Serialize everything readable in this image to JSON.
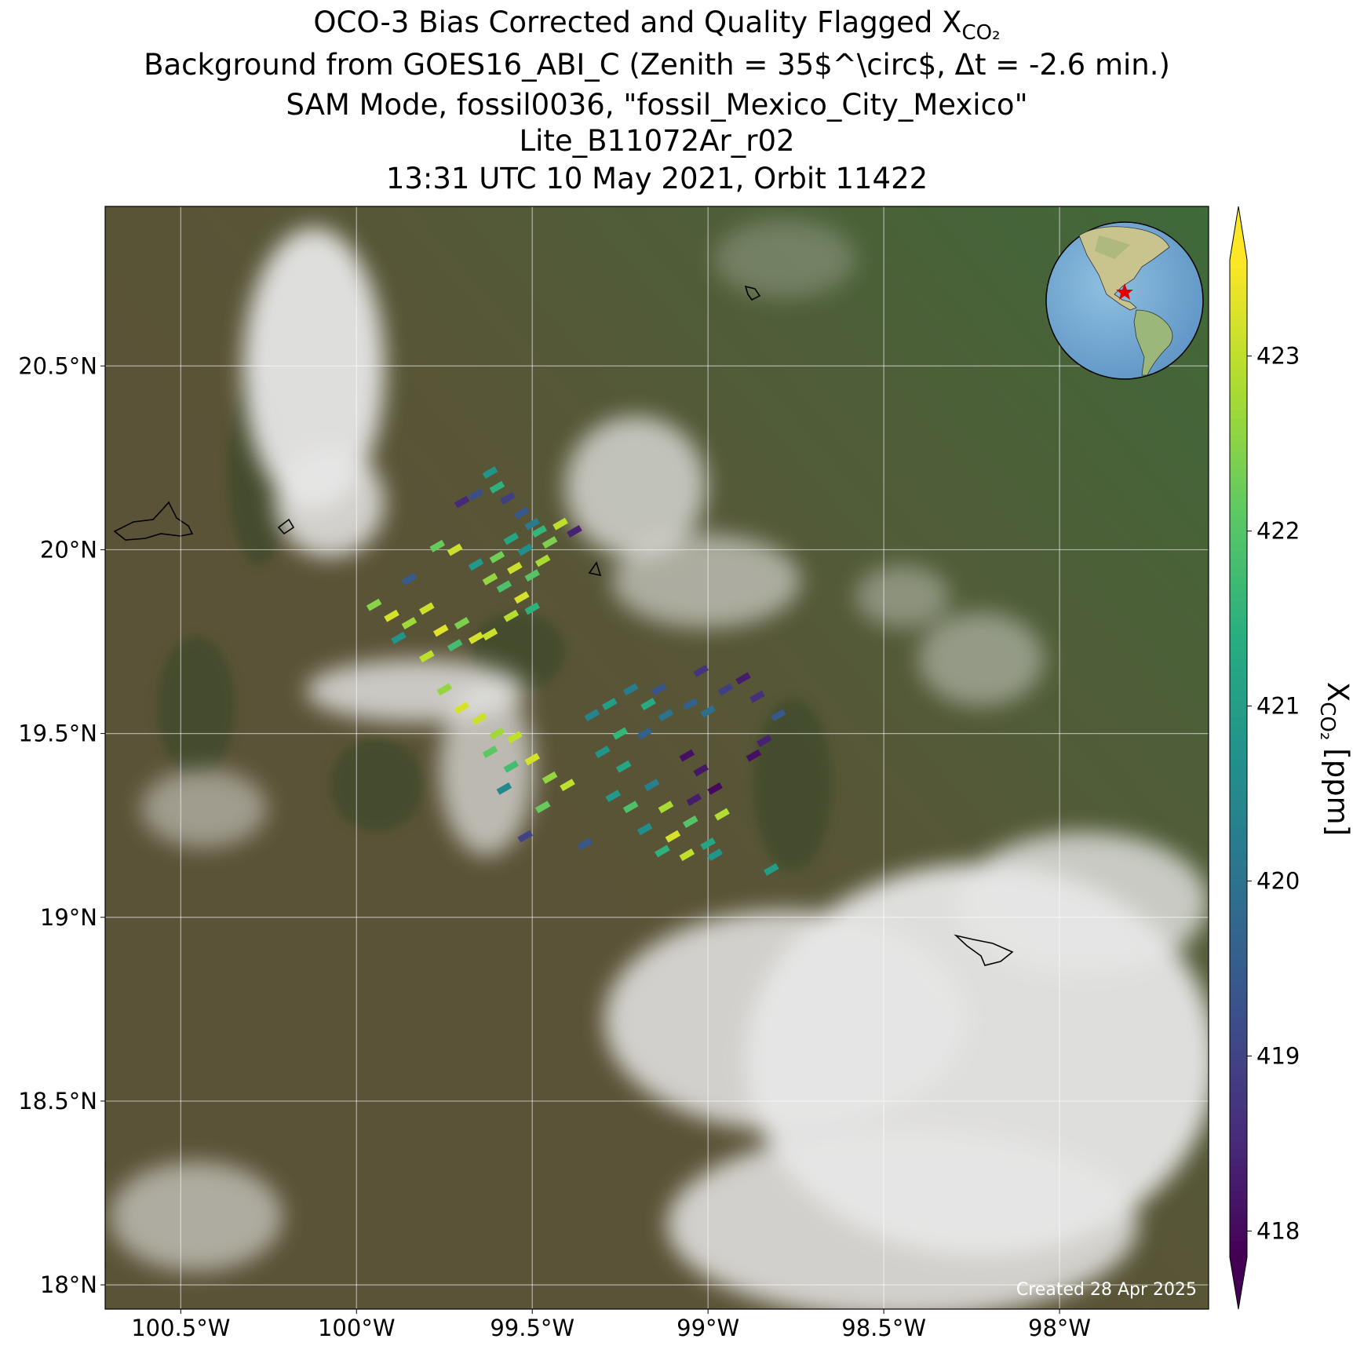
{
  "chart_data": {
    "type": "map-scatter",
    "title_lines": [
      "OCO-3 Bias Corrected and Quality Flagged X",
      "Background from GOES16_ABI_C (Zenith = 35$^\\circ$, Δt = -2.6 min.)",
      "SAM Mode, fossil0036, \"fossil_Mexico_City_Mexico\"",
      "Lite_B11072Ar_r02",
      "13:31 UTC 10 May 2021, Orbit 11422"
    ],
    "title_subscript": "CO₂",
    "colorbar_label": {
      "symbol": "X",
      "subscript": "CO₂",
      "unit": "[ppm]"
    },
    "credit": "Created 28 Apr 2025",
    "colormap": "viridis",
    "clim": [
      417.85,
      423.55
    ],
    "cticks": [
      418,
      419,
      420,
      421,
      422,
      423
    ],
    "xlim": [
      -100.715,
      -97.576
    ],
    "ylim": [
      17.934,
      20.934
    ],
    "xticks": [
      {
        "value": -100.5,
        "label": "100.5°W"
      },
      {
        "value": -100,
        "label": "100°W"
      },
      {
        "value": -99.5,
        "label": "99.5°W"
      },
      {
        "value": -99,
        "label": "99°W"
      },
      {
        "value": -98.5,
        "label": "98.5°W"
      },
      {
        "value": -98,
        "label": "98°W"
      }
    ],
    "yticks": [
      {
        "value": 18,
        "label": "18°N"
      },
      {
        "value": 18.5,
        "label": "18.5°N"
      },
      {
        "value": 19,
        "label": "19°N"
      },
      {
        "value": 19.5,
        "label": "19.5°N"
      },
      {
        "value": 20,
        "label": "20°N"
      },
      {
        "value": 20.5,
        "label": "20.5°N"
      }
    ],
    "grid": true,
    "x": [
      -99.62,
      -99.6,
      -99.66,
      -99.57,
      -99.7,
      -99.53,
      -99.5,
      -99.48,
      -99.56,
      -99.52,
      -99.45,
      -99.42,
      -99.38,
      -99.6,
      -99.55,
      -99.5,
      -99.47,
      -99.58,
      -99.53,
      -99.62,
      -99.56,
      -99.5,
      -99.66,
      -99.72,
      -99.77,
      -99.85,
      -99.95,
      -99.9,
      -99.85,
      -99.8,
      -99.76,
      -99.7,
      -99.66,
      -99.62,
      -99.72,
      -99.88,
      -99.8,
      -99.75,
      -99.7,
      -99.65,
      -99.6,
      -99.55,
      -99.62,
      -99.56,
      -99.5,
      -99.45,
      -99.4,
      -99.58,
      -99.47,
      -99.33,
      -99.28,
      -99.22,
      -99.17,
      -99.12,
      -99.25,
      -99.18,
      -99.3,
      -99.24,
      -99.14,
      -99.05,
      -99.0,
      -98.95,
      -98.9,
      -98.86,
      -98.8,
      -99.02,
      -99.06,
      -99.02,
      -98.98,
      -99.04,
      -98.84,
      -98.87,
      -99.27,
      -99.22,
      -99.16,
      -99.12,
      -99.18,
      -99.1,
      -99.05,
      -99.13,
      -99.06,
      -99.0,
      -98.96,
      -98.98,
      -98.82,
      -99.35,
      -99.52
    ],
    "y": [
      20.21,
      20.17,
      20.15,
      20.14,
      20.13,
      20.1,
      20.07,
      20.05,
      20.03,
      20.0,
      20.02,
      20.07,
      20.05,
      19.98,
      19.95,
      19.93,
      19.97,
      19.9,
      19.87,
      19.92,
      19.82,
      19.84,
      19.96,
      20.0,
      20.01,
      19.92,
      19.85,
      19.82,
      19.8,
      19.84,
      19.78,
      19.8,
      19.76,
      19.77,
      19.74,
      19.76,
      19.71,
      19.62,
      19.57,
      19.54,
      19.5,
      19.49,
      19.45,
      19.41,
      19.43,
      19.38,
      19.36,
      19.35,
      19.3,
      19.55,
      19.58,
      19.62,
      19.58,
      19.55,
      19.5,
      19.5,
      19.45,
      19.41,
      19.62,
      19.58,
      19.56,
      19.62,
      19.65,
      19.6,
      19.55,
      19.67,
      19.44,
      19.4,
      19.35,
      19.32,
      19.48,
      19.44,
      19.33,
      19.3,
      19.36,
      19.3,
      19.24,
      19.22,
      19.26,
      19.18,
      19.17,
      19.2,
      19.28,
      19.17,
      19.13,
      19.2,
      19.22
    ],
    "values": [
      420.8,
      421.5,
      419.2,
      418.9,
      418.5,
      419.4,
      420.2,
      421.6,
      421.2,
      420.6,
      422.4,
      423.0,
      418.4,
      422.3,
      423.1,
      422.0,
      422.8,
      421.9,
      423.2,
      422.6,
      422.9,
      421.5,
      420.9,
      423.1,
      422.2,
      419.5,
      422.5,
      423.2,
      422.7,
      423.1,
      423.3,
      422.4,
      423.2,
      423.1,
      421.8,
      420.8,
      423.0,
      422.6,
      423.2,
      423.1,
      422.7,
      423.0,
      422.1,
      421.8,
      423.2,
      422.6,
      423.0,
      420.5,
      422.2,
      420.4,
      421.0,
      420.2,
      421.3,
      420.0,
      421.6,
      419.6,
      420.8,
      421.2,
      419.3,
      419.6,
      419.9,
      418.9,
      418.3,
      418.6,
      419.4,
      418.7,
      418.1,
      418.2,
      418.0,
      418.3,
      418.4,
      418.1,
      420.9,
      421.9,
      420.3,
      422.8,
      420.6,
      423.2,
      422.0,
      421.5,
      423.0,
      421.2,
      422.9,
      420.8,
      421.0,
      419.4,
      419.0
    ]
  }
}
